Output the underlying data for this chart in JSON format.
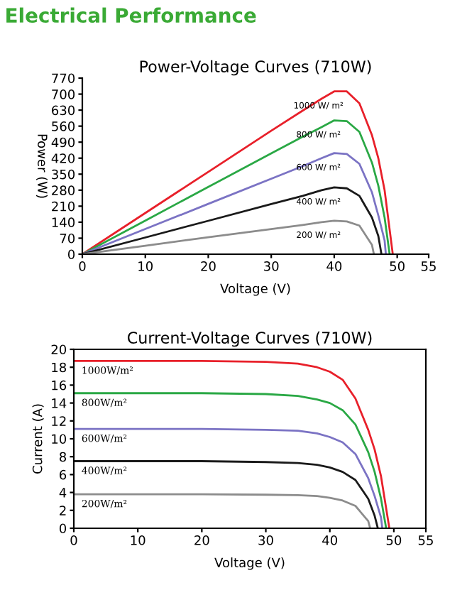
{
  "chart_data": [
    {
      "type": "line",
      "title": "Power-Voltage Curves (710W)",
      "xlabel": "Voltage (V)",
      "ylabel": "Power (W)",
      "annotations": [
        "Electrical Performance"
      ],
      "xlim": [
        0,
        55
      ],
      "xticks": [
        0,
        10,
        20,
        30,
        40,
        50,
        55
      ],
      "ylim": [
        0,
        770
      ],
      "yticks": [
        0,
        70,
        140,
        210,
        280,
        350,
        420,
        490,
        560,
        630,
        700,
        770
      ],
      "grid": false,
      "legend": false,
      "marker": "none",
      "line_style": "solid",
      "series": [
        {
          "name": "1000 W/ m²",
          "color": "#e8202a",
          "x": [
            0,
            10,
            20,
            30,
            35,
            38,
            40,
            42,
            44,
            46,
            47,
            48,
            49.3
          ],
          "values": [
            0,
            180,
            360,
            540,
            628,
            680,
            712,
            712,
            660,
            520,
            420,
            280,
            0
          ]
        },
        {
          "name": "800 W/ m²",
          "color": "#2aa845",
          "x": [
            0,
            10,
            20,
            30,
            35,
            38,
            40,
            42,
            44,
            46,
            47,
            48,
            48.8
          ],
          "values": [
            0,
            147,
            294,
            441,
            514,
            556,
            585,
            582,
            535,
            400,
            300,
            160,
            0
          ]
        },
        {
          "name": "600 W/ m²",
          "color": "#7b73c4",
          "x": [
            0,
            10,
            20,
            30,
            35,
            38,
            40,
            42,
            44,
            46,
            47,
            48,
            48.2
          ],
          "values": [
            0,
            110,
            220,
            330,
            385,
            420,
            442,
            438,
            395,
            270,
            170,
            60,
            0
          ]
        },
        {
          "name": "400 W/ m²",
          "color": "#1a1a1a",
          "x": [
            0,
            10,
            20,
            30,
            35,
            38,
            40,
            42,
            44,
            46,
            47,
            47.5
          ],
          "values": [
            0,
            73,
            146,
            219,
            255,
            280,
            292,
            288,
            255,
            160,
            80,
            0
          ]
        },
        {
          "name": "200 W/ m²",
          "color": "#8c8c8c",
          "x": [
            0,
            10,
            20,
            30,
            35,
            38,
            40,
            42,
            44,
            46,
            46.3
          ],
          "values": [
            0,
            37,
            74,
            110,
            128,
            140,
            146,
            143,
            125,
            40,
            0
          ]
        }
      ]
    },
    {
      "type": "line",
      "title": "Current-Voltage Curves (710W)",
      "xlabel": "Voltage (V)",
      "ylabel": "Current (A)",
      "xlim": [
        0,
        55
      ],
      "xticks": [
        0,
        10,
        20,
        30,
        40,
        50,
        55
      ],
      "ylim": [
        0,
        20
      ],
      "yticks": [
        0,
        2,
        4,
        6,
        8,
        10,
        12,
        14,
        16,
        18,
        20
      ],
      "grid": false,
      "legend": false,
      "marker": "none",
      "line_style": "solid",
      "series": [
        {
          "name": "1000W/m²",
          "color": "#e8202a",
          "x": [
            0,
            10,
            20,
            30,
            35,
            38,
            40,
            42,
            44,
            46,
            47,
            48,
            49.3
          ],
          "values": [
            18.7,
            18.7,
            18.7,
            18.6,
            18.4,
            18.0,
            17.5,
            16.6,
            14.5,
            11.0,
            8.8,
            5.8,
            0
          ]
        },
        {
          "name": "800W/m²",
          "color": "#2aa845",
          "x": [
            0,
            10,
            20,
            30,
            35,
            38,
            40,
            42,
            44,
            46,
            47,
            48,
            48.8
          ],
          "values": [
            15.1,
            15.1,
            15.1,
            15.0,
            14.8,
            14.4,
            14.0,
            13.2,
            11.6,
            8.5,
            6.3,
            3.3,
            0
          ]
        },
        {
          "name": "600W/m²",
          "color": "#7b73c4",
          "x": [
            0,
            10,
            20,
            30,
            35,
            38,
            40,
            42,
            44,
            46,
            47,
            48,
            48.2
          ],
          "values": [
            11.1,
            11.1,
            11.1,
            11.0,
            10.9,
            10.6,
            10.2,
            9.6,
            8.3,
            5.6,
            3.6,
            1.2,
            0
          ]
        },
        {
          "name": "400W/m²",
          "color": "#1a1a1a",
          "x": [
            0,
            10,
            20,
            30,
            35,
            38,
            40,
            42,
            44,
            46,
            47,
            47.5
          ],
          "values": [
            7.5,
            7.5,
            7.5,
            7.4,
            7.3,
            7.1,
            6.8,
            6.3,
            5.4,
            3.3,
            1.4,
            0
          ]
        },
        {
          "name": "200W/m²",
          "color": "#8c8c8c",
          "x": [
            0,
            10,
            20,
            30,
            35,
            38,
            40,
            42,
            44,
            46,
            46.3
          ],
          "values": [
            3.8,
            3.8,
            3.8,
            3.75,
            3.7,
            3.6,
            3.4,
            3.1,
            2.5,
            0.8,
            0
          ]
        }
      ]
    }
  ]
}
